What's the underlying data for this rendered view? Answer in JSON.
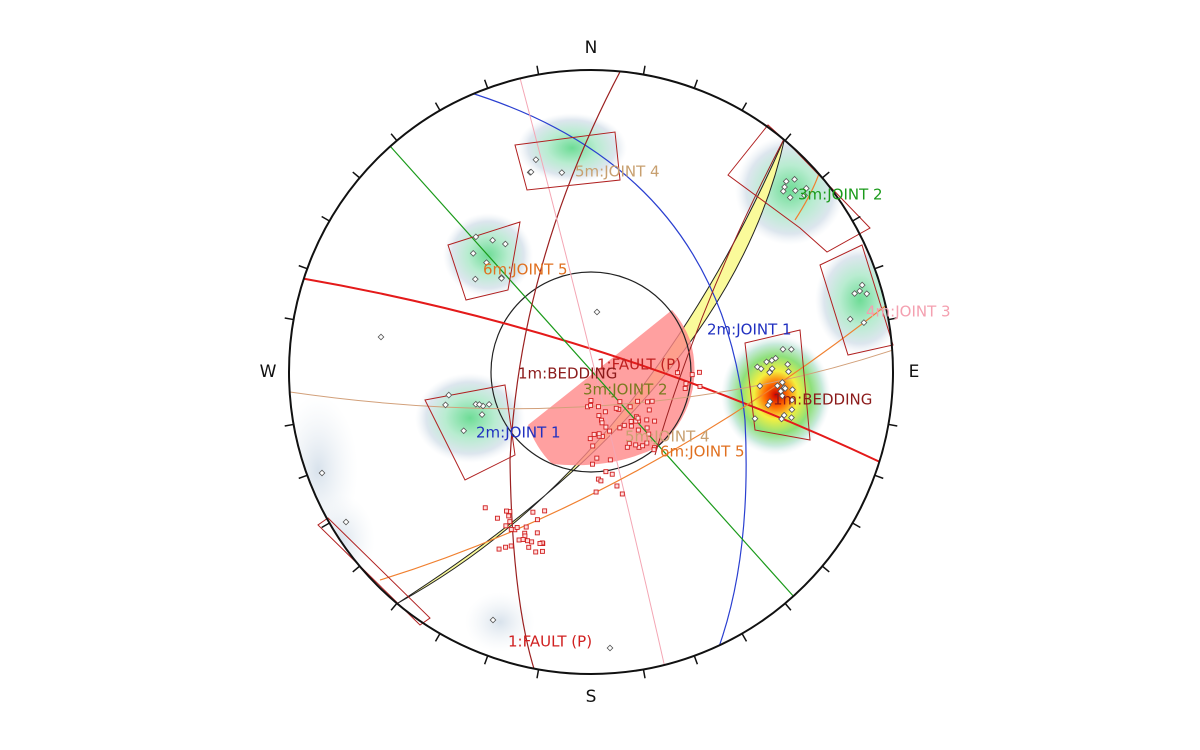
{
  "compass": {
    "north": "N",
    "south": "S",
    "west": "W",
    "east": "E"
  },
  "labels": [
    {
      "text": "5m:JOINT 4"
    },
    {
      "text": "3m:JOINT 2"
    },
    {
      "text": "6m:JOINT 5"
    },
    {
      "text": "2m:JOINT 1"
    },
    {
      "text": "4m:JOINT 3"
    },
    {
      "text": "1:FAULT (P)"
    },
    {
      "text": "1m:BEDDING"
    },
    {
      "text": "3m:JOINT 2"
    },
    {
      "text": "1m:BEDDING"
    },
    {
      "text": "2m:JOINT 1"
    },
    {
      "text": "5m:JOINT 4"
    },
    {
      "text": "6m:JOINT 5"
    },
    {
      "text": "1:FAULT (P)"
    }
  ]
}
